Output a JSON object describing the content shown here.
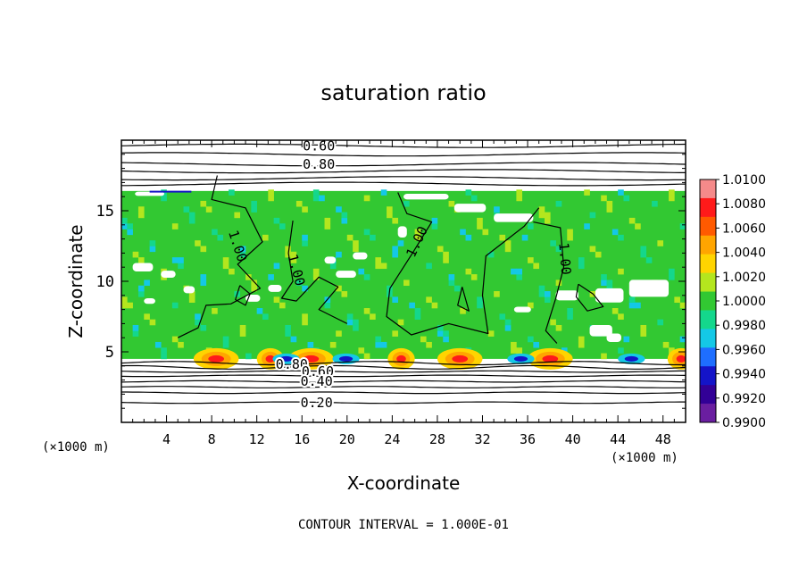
{
  "chart_data": {
    "type": "heatmap",
    "title": "saturation ratio",
    "xlabel": "X-coordinate",
    "ylabel": "Z-coordinate",
    "x_unit": "(×1000 m)",
    "z_unit": "(×1000 m)",
    "xlim": [
      0,
      50
    ],
    "ylim": [
      0,
      20
    ],
    "x_ticks": [
      4,
      8,
      12,
      16,
      20,
      24,
      28,
      32,
      36,
      40,
      44,
      48
    ],
    "y_ticks": [
      5,
      10,
      15
    ],
    "colorbar": {
      "ticks": [
        "1.0100",
        "1.0080",
        "1.0060",
        "1.0040",
        "1.0020",
        "1.0000",
        "0.9980",
        "0.9960",
        "0.9940",
        "0.9920",
        "0.9900"
      ],
      "colors": [
        "#f58a8a",
        "#ff1a1a",
        "#ff5a00",
        "#ffa500",
        "#ffd400",
        "#b4e61e",
        "#32c832",
        "#14d78c",
        "#14c8e6",
        "#1e6eff",
        "#1414c8",
        "#320096",
        "#6a1ea0"
      ]
    },
    "contour_labels": [
      {
        "value": "0.60",
        "x": 17.5,
        "z": 19.6
      },
      {
        "value": "0.80",
        "x": 17.5,
        "z": 18.3
      },
      {
        "value": "1.00",
        "x": 10.3,
        "z": 12.5,
        "angle": 72
      },
      {
        "value": "1.00",
        "x": 15.5,
        "z": 10.8,
        "angle": 75
      },
      {
        "value": "1.00",
        "x": 26.2,
        "z": 12.8,
        "angle": -65
      },
      {
        "value": "1.00",
        "x": 39.3,
        "z": 11.6,
        "angle": 85
      },
      {
        "value": "0.80",
        "x": 15.1,
        "z": 4.1
      },
      {
        "value": "0.60",
        "x": 17.4,
        "z": 3.6
      },
      {
        "value": "0.40",
        "x": 17.3,
        "z": 2.9
      },
      {
        "value": "0.20",
        "x": 17.3,
        "z": 1.4
      }
    ],
    "upper_contour_z": [
      19.6,
      19.0,
      18.3,
      17.8,
      17.3,
      16.9
    ],
    "lower_contour_z": [
      4.2,
      3.9,
      3.6,
      3.3,
      2.9,
      2.5,
      2.1,
      1.4
    ],
    "cloud_top_z": 16.4,
    "cloud_base_z": 4.5,
    "footer": "CONTOUR INTERVAL = 1.000E-01"
  }
}
